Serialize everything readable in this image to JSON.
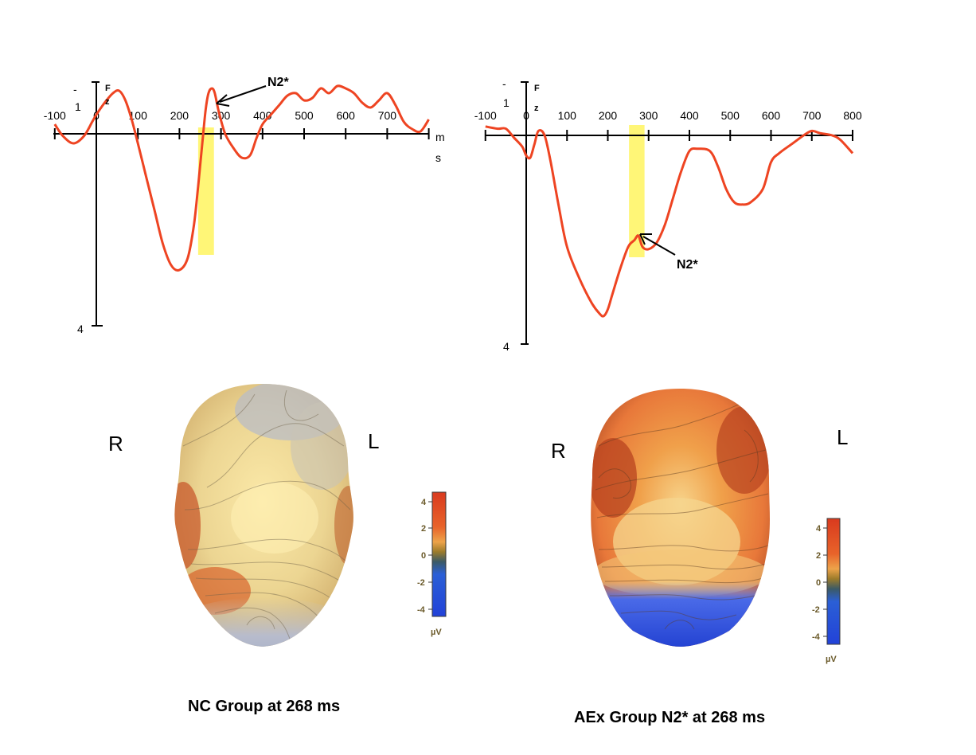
{
  "chart_data": [
    {
      "type": "line",
      "channel_label": [
        "F",
        "z"
      ],
      "x_tick_labels": [
        "-100",
        "0",
        "100",
        "200",
        "300",
        "400",
        "500",
        "600",
        "700"
      ],
      "x_unit_label": [
        "m",
        "s"
      ],
      "y_top_label": [
        "-",
        "1"
      ],
      "y_bottom_label": "4",
      "highlight_ms": [
        245,
        283
      ],
      "annotation": "N2*",
      "series": [
        {
          "color": "#ee4422",
          "x": [
            -100,
            -80,
            -55,
            -30,
            -10,
            0,
            20,
            40,
            55,
            70,
            85,
            100,
            120,
            140,
            160,
            180,
            200,
            220,
            235,
            245,
            255,
            263,
            270,
            278,
            285,
            295,
            310,
            330,
            350,
            370,
            385,
            400,
            420,
            440,
            460,
            480,
            500,
            520,
            540,
            560,
            580,
            600,
            620,
            640,
            660,
            680,
            700,
            720,
            740,
            760,
            780,
            800
          ],
          "y": [
            -0.2,
            0.05,
            0.2,
            0.05,
            -0.25,
            -0.4,
            -0.65,
            -0.85,
            -0.9,
            -0.7,
            -0.3,
            0.2,
            0.9,
            1.6,
            2.3,
            2.75,
            2.85,
            2.6,
            1.9,
            1.1,
            0.2,
            -0.5,
            -0.85,
            -0.95,
            -0.85,
            -0.45,
            0.0,
            0.3,
            0.5,
            0.45,
            0.1,
            -0.2,
            -0.4,
            -0.6,
            -0.8,
            -0.85,
            -0.7,
            -0.75,
            -0.95,
            -0.85,
            -1.0,
            -0.95,
            -0.85,
            -0.65,
            -0.55,
            -0.7,
            -0.85,
            -0.6,
            -0.25,
            -0.1,
            -0.05,
            -0.3
          ]
        }
      ]
    },
    {
      "type": "line",
      "channel_label": [
        "F",
        "z"
      ],
      "x_tick_labels": [
        "-100",
        "0",
        "100",
        "200",
        "300",
        "400",
        "500",
        "600",
        "700",
        "800"
      ],
      "y_top_label": [
        "-",
        "1"
      ],
      "y_bottom_label": "4",
      "highlight_ms": [
        252,
        290
      ],
      "annotation": "N2*",
      "series": [
        {
          "color": "#ee4422",
          "x": [
            -100,
            -70,
            -50,
            -30,
            -10,
            0,
            10,
            20,
            30,
            45,
            60,
            80,
            100,
            130,
            160,
            180,
            190,
            200,
            210,
            230,
            250,
            265,
            275,
            285,
            300,
            320,
            340,
            360,
            380,
            400,
            420,
            450,
            470,
            490,
            510,
            530,
            550,
            580,
            600,
            620,
            650,
            680,
            700,
            720,
            750,
            770,
            800
          ],
          "y": [
            -0.2,
            -0.15,
            -0.15,
            0.05,
            0.25,
            0.45,
            0.5,
            0.2,
            -0.1,
            0.0,
            0.6,
            1.6,
            2.5,
            3.2,
            3.75,
            4.0,
            4.05,
            3.9,
            3.6,
            3.0,
            2.5,
            2.35,
            2.25,
            2.5,
            2.55,
            2.4,
            2.0,
            1.4,
            0.8,
            0.35,
            0.3,
            0.35,
            0.7,
            1.2,
            1.5,
            1.55,
            1.5,
            1.2,
            0.6,
            0.4,
            0.2,
            0.0,
            -0.1,
            -0.05,
            0.0,
            0.1,
            0.4
          ]
        }
      ]
    }
  ],
  "maps": [
    {
      "side_left": "R",
      "side_right": "L",
      "caption": "NC Group at 268 ms",
      "colorbar": {
        "labels": [
          "4",
          "2",
          "0",
          "-2",
          "-4"
        ],
        "unit": "µV"
      }
    },
    {
      "side_left": "R",
      "side_right": "L",
      "caption": "AEx Group N2* at 268 ms",
      "colorbar": {
        "labels": [
          "4",
          "2",
          "0",
          "-2",
          "-4"
        ],
        "unit": "µV"
      }
    }
  ]
}
